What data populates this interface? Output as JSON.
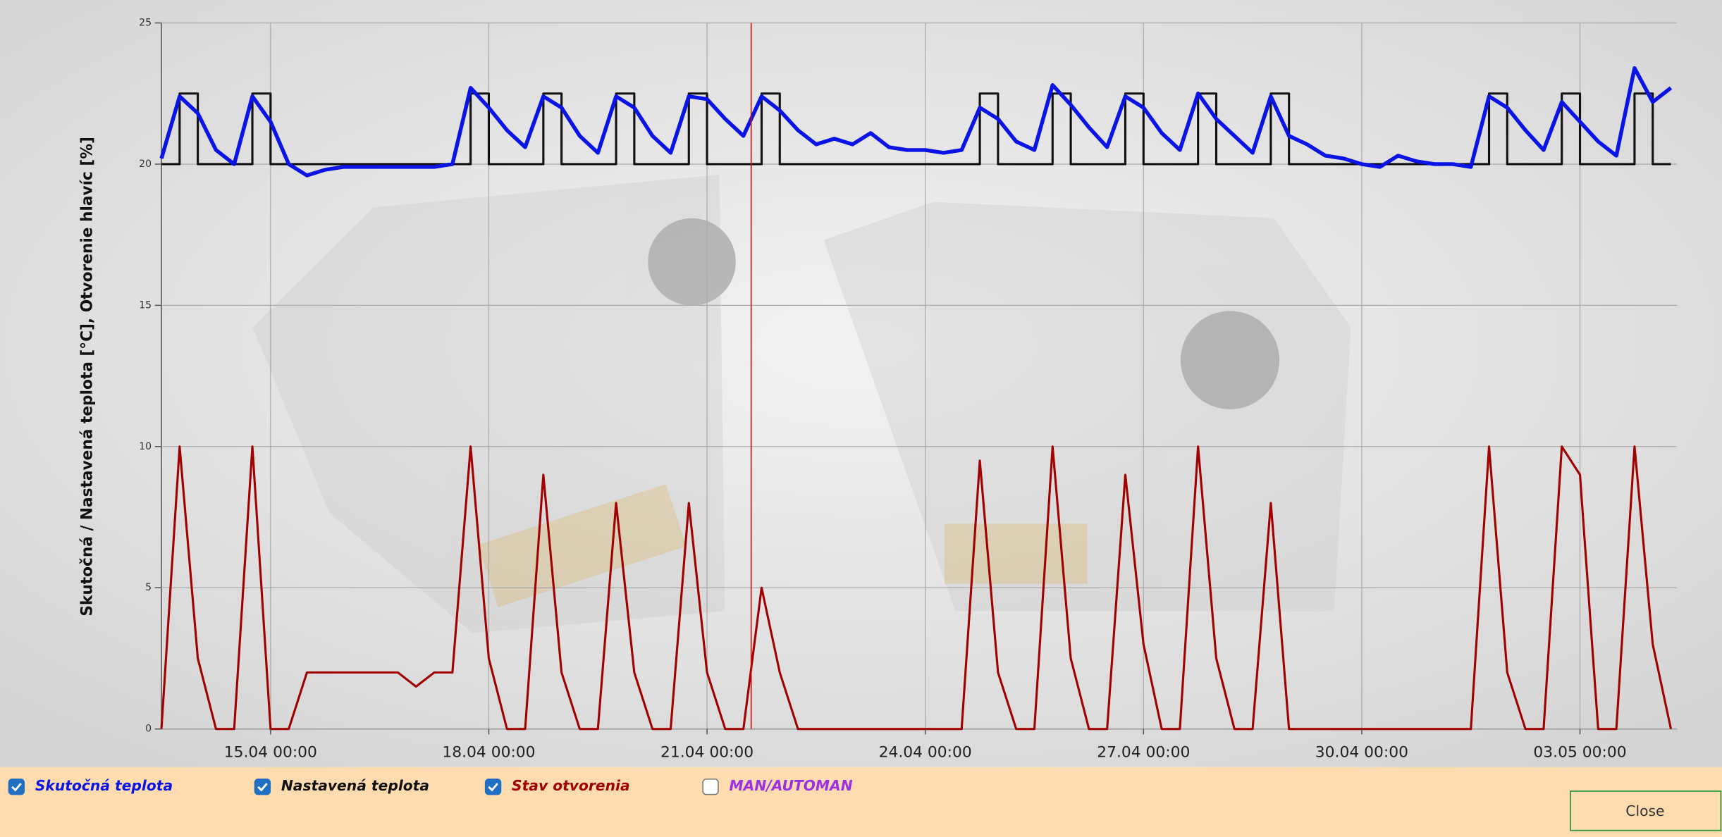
{
  "chart_data": {
    "type": "line",
    "y_label": "Skutočná / Nastavená teplota [°C], Otvorenie hlavíc [%]",
    "x": [
      "13.04 12:00",
      "13.04 18:00",
      "14.04 00:00",
      "14.04 06:00",
      "14.04 12:00",
      "14.04 18:00",
      "15.04 00:00",
      "15.04 06:00",
      "15.04 12:00",
      "15.04 18:00",
      "16.04 00:00",
      "16.04 06:00",
      "16.04 12:00",
      "16.04 18:00",
      "17.04 00:00",
      "17.04 06:00",
      "17.04 12:00",
      "17.04 18:00",
      "18.04 00:00",
      "18.04 06:00",
      "18.04 12:00",
      "18.04 18:00",
      "19.04 00:00",
      "19.04 06:00",
      "19.04 12:00",
      "19.04 18:00",
      "20.04 00:00",
      "20.04 06:00",
      "20.04 12:00",
      "20.04 18:00",
      "21.04 00:00",
      "21.04 06:00",
      "21.04 12:00",
      "21.04 18:00",
      "22.04 00:00",
      "22.04 06:00",
      "22.04 12:00",
      "22.04 18:00",
      "23.04 00:00",
      "23.04 06:00",
      "23.04 12:00",
      "23.04 18:00",
      "24.04 00:00",
      "24.04 06:00",
      "24.04 12:00",
      "24.04 18:00",
      "25.04 00:00",
      "25.04 06:00",
      "25.04 12:00",
      "25.04 18:00",
      "26.04 00:00",
      "26.04 06:00",
      "26.04 12:00",
      "26.04 18:00",
      "27.04 00:00",
      "27.04 06:00",
      "27.04 12:00",
      "27.04 18:00",
      "28.04 00:00",
      "28.04 06:00",
      "28.04 12:00",
      "28.04 18:00",
      "29.04 00:00",
      "29.04 06:00",
      "29.04 12:00",
      "29.04 18:00",
      "30.04 00:00",
      "30.04 06:00",
      "30.04 12:00",
      "30.04 18:00",
      "01.05 00:00",
      "01.05 06:00",
      "01.05 12:00",
      "01.05 18:00",
      "02.05 00:00",
      "02.05 06:00",
      "02.05 12:00",
      "02.05 18:00",
      "03.05 00:00",
      "03.05 06:00",
      "03.05 12:00",
      "03.05 18:00",
      "04.05 00:00",
      "04.05 06:00"
    ],
    "series": [
      {
        "name": "Skutočná teplota",
        "color": "#0a14e6",
        "width": 3.5,
        "step": false,
        "values": [
          20.2,
          22.4,
          21.8,
          20.5,
          20.0,
          22.4,
          21.5,
          20.0,
          19.6,
          19.8,
          19.9,
          19.9,
          19.9,
          19.9,
          19.9,
          19.9,
          20.0,
          22.7,
          22.0,
          21.2,
          20.6,
          22.4,
          22.0,
          21.0,
          20.4,
          22.4,
          22.0,
          21.0,
          20.4,
          22.4,
          22.3,
          21.6,
          21.0,
          22.4,
          21.9,
          21.2,
          20.7,
          20.9,
          20.7,
          21.1,
          20.6,
          20.5,
          20.5,
          20.4,
          20.5,
          22.0,
          21.6,
          20.8,
          20.5,
          22.8,
          22.1,
          21.3,
          20.6,
          22.4,
          22.0,
          21.1,
          20.5,
          22.5,
          21.6,
          21.0,
          20.4,
          22.4,
          21.0,
          20.7,
          20.3,
          20.2,
          20.0,
          19.9,
          20.3,
          20.1,
          20.0,
          20.0,
          19.9,
          22.4,
          22.0,
          21.2,
          20.5,
          22.2,
          21.5,
          20.8,
          20.3,
          23.4,
          22.2,
          22.7
        ]
      },
      {
        "name": "Nastavená teplota",
        "color": "#111111",
        "width": 2,
        "step": true,
        "values": [
          20,
          22.5,
          20,
          20,
          20,
          22.5,
          20,
          20,
          20,
          20,
          20,
          20,
          20,
          20,
          20,
          20,
          20,
          22.5,
          20,
          20,
          20,
          22.5,
          20,
          20,
          20,
          22.5,
          20,
          20,
          20,
          22.5,
          20,
          20,
          20,
          22.5,
          20,
          20,
          20,
          20,
          20,
          20,
          20,
          20,
          20,
          20,
          20,
          22.5,
          20,
          20,
          20,
          22.5,
          20,
          20,
          20,
          22.5,
          20,
          20,
          20,
          22.5,
          20,
          20,
          20,
          22.5,
          20,
          20,
          20,
          20,
          20,
          20,
          20,
          20,
          20,
          20,
          20,
          22.5,
          20,
          20,
          20,
          22.5,
          20,
          20,
          20,
          22.5,
          20,
          20
        ]
      },
      {
        "name": "Stav otvorenia",
        "color": "#a00000",
        "width": 2,
        "step": false,
        "values": [
          0,
          10,
          2.5,
          0,
          0,
          10,
          0,
          0,
          2,
          2,
          2,
          2,
          2,
          2,
          1.5,
          2,
          2,
          10,
          2.5,
          0,
          0,
          9,
          2,
          0,
          0,
          8,
          2,
          0,
          0,
          8,
          2,
          0,
          0,
          5,
          2,
          0,
          0,
          0,
          0,
          0,
          0,
          0,
          0,
          0,
          0,
          9.5,
          2,
          0,
          0,
          10,
          2.5,
          0,
          0,
          9,
          3,
          0,
          0,
          10,
          2.5,
          0,
          0,
          8,
          0,
          0,
          0,
          0,
          0,
          0,
          0,
          0,
          0,
          0,
          0,
          10,
          2,
          0,
          0,
          10,
          9,
          0,
          0,
          10,
          3,
          0
        ]
      }
    ],
    "extra_legend": [
      {
        "name": "MAN/AUTOMAN",
        "color": "#9b30e0",
        "checked": false
      }
    ],
    "xlim": [
      "13.04 12:00",
      "04.05 08:00"
    ],
    "xticks": [
      "15.04 00:00",
      "18.04 00:00",
      "21.04 00:00",
      "24.04 00:00",
      "27.04 00:00",
      "30.04 00:00",
      "03.05 00:00"
    ],
    "ylim": [
      0,
      25
    ],
    "yticks": [
      0,
      5,
      10,
      15,
      20,
      25
    ],
    "grid": true
  },
  "close_button": "Close"
}
